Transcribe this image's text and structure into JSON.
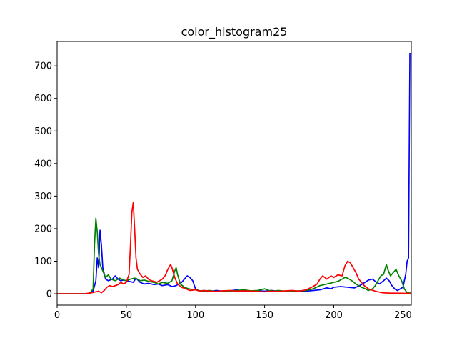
{
  "chart_data": {
    "type": "line",
    "title": "color_histogram25",
    "xlabel": "",
    "ylabel": "",
    "xlim": [
      0,
      256
    ],
    "ylim": [
      -35,
      775
    ],
    "xticks": [
      0,
      50,
      100,
      150,
      200,
      250
    ],
    "yticks": [
      0,
      100,
      200,
      300,
      400,
      500,
      600,
      700
    ],
    "grid": false,
    "series": [
      {
        "color": "#0000ff",
        "points": [
          [
            0,
            0
          ],
          [
            20,
            0
          ],
          [
            24,
            2
          ],
          [
            26,
            8
          ],
          [
            28,
            40
          ],
          [
            29,
            110
          ],
          [
            30,
            80
          ],
          [
            31,
            195
          ],
          [
            32,
            150
          ],
          [
            33,
            80
          ],
          [
            35,
            45
          ],
          [
            37,
            40
          ],
          [
            40,
            45
          ],
          [
            42,
            55
          ],
          [
            44,
            45
          ],
          [
            46,
            40
          ],
          [
            48,
            42
          ],
          [
            50,
            40
          ],
          [
            52,
            38
          ],
          [
            55,
            35
          ],
          [
            57,
            48
          ],
          [
            60,
            35
          ],
          [
            63,
            30
          ],
          [
            66,
            32
          ],
          [
            70,
            28
          ],
          [
            73,
            30
          ],
          [
            76,
            25
          ],
          [
            80,
            28
          ],
          [
            83,
            22
          ],
          [
            86,
            25
          ],
          [
            88,
            30
          ],
          [
            90,
            35
          ],
          [
            92,
            45
          ],
          [
            94,
            55
          ],
          [
            96,
            50
          ],
          [
            98,
            40
          ],
          [
            100,
            15
          ],
          [
            103,
            8
          ],
          [
            106,
            10
          ],
          [
            110,
            7
          ],
          [
            115,
            10
          ],
          [
            120,
            8
          ],
          [
            125,
            9
          ],
          [
            130,
            12
          ],
          [
            135,
            8
          ],
          [
            140,
            7
          ],
          [
            145,
            9
          ],
          [
            150,
            8
          ],
          [
            155,
            10
          ],
          [
            160,
            8
          ],
          [
            165,
            7
          ],
          [
            170,
            9
          ],
          [
            175,
            8
          ],
          [
            180,
            8
          ],
          [
            185,
            10
          ],
          [
            190,
            12
          ],
          [
            195,
            18
          ],
          [
            198,
            15
          ],
          [
            200,
            20
          ],
          [
            205,
            22
          ],
          [
            210,
            20
          ],
          [
            215,
            18
          ],
          [
            220,
            28
          ],
          [
            225,
            42
          ],
          [
            228,
            45
          ],
          [
            230,
            38
          ],
          [
            233,
            30
          ],
          [
            236,
            40
          ],
          [
            238,
            48
          ],
          [
            240,
            40
          ],
          [
            242,
            25
          ],
          [
            244,
            15
          ],
          [
            246,
            10
          ],
          [
            248,
            15
          ],
          [
            250,
            20
          ],
          [
            252,
            60
          ],
          [
            253,
            100
          ],
          [
            254,
            110
          ],
          [
            255,
            740
          ]
        ]
      },
      {
        "color": "#008000",
        "points": [
          [
            0,
            0
          ],
          [
            22,
            0
          ],
          [
            24,
            3
          ],
          [
            26,
            15
          ],
          [
            27,
            150
          ],
          [
            28,
            232
          ],
          [
            29,
            190
          ],
          [
            30,
            120
          ],
          [
            31,
            90
          ],
          [
            33,
            70
          ],
          [
            35,
            50
          ],
          [
            37,
            58
          ],
          [
            39,
            45
          ],
          [
            42,
            40
          ],
          [
            45,
            48
          ],
          [
            48,
            42
          ],
          [
            50,
            40
          ],
          [
            53,
            45
          ],
          [
            56,
            48
          ],
          [
            58,
            45
          ],
          [
            60,
            40
          ],
          [
            63,
            42
          ],
          [
            66,
            38
          ],
          [
            70,
            35
          ],
          [
            73,
            30
          ],
          [
            76,
            35
          ],
          [
            80,
            32
          ],
          [
            83,
            40
          ],
          [
            85,
            70
          ],
          [
            86,
            80
          ],
          [
            87,
            60
          ],
          [
            89,
            30
          ],
          [
            92,
            20
          ],
          [
            95,
            15
          ],
          [
            100,
            12
          ],
          [
            105,
            8
          ],
          [
            110,
            10
          ],
          [
            115,
            7
          ],
          [
            120,
            9
          ],
          [
            125,
            8
          ],
          [
            130,
            10
          ],
          [
            135,
            12
          ],
          [
            140,
            9
          ],
          [
            145,
            10
          ],
          [
            150,
            15
          ],
          [
            153,
            10
          ],
          [
            156,
            8
          ],
          [
            160,
            10
          ],
          [
            165,
            8
          ],
          [
            170,
            7
          ],
          [
            175,
            9
          ],
          [
            180,
            10
          ],
          [
            185,
            15
          ],
          [
            190,
            25
          ],
          [
            195,
            30
          ],
          [
            200,
            35
          ],
          [
            203,
            38
          ],
          [
            206,
            45
          ],
          [
            208,
            50
          ],
          [
            210,
            48
          ],
          [
            213,
            40
          ],
          [
            216,
            30
          ],
          [
            220,
            20
          ],
          [
            223,
            15
          ],
          [
            225,
            10
          ],
          [
            228,
            15
          ],
          [
            230,
            25
          ],
          [
            232,
            40
          ],
          [
            234,
            55
          ],
          [
            236,
            60
          ],
          [
            238,
            90
          ],
          [
            239,
            75
          ],
          [
            241,
            55
          ],
          [
            243,
            65
          ],
          [
            245,
            75
          ],
          [
            247,
            55
          ],
          [
            249,
            40
          ],
          [
            251,
            15
          ],
          [
            253,
            3
          ],
          [
            256,
            2
          ]
        ]
      },
      {
        "color": "#ff0000",
        "points": [
          [
            0,
            0
          ],
          [
            20,
            0
          ],
          [
            25,
            3
          ],
          [
            28,
            6
          ],
          [
            30,
            8
          ],
          [
            32,
            3
          ],
          [
            34,
            10
          ],
          [
            36,
            20
          ],
          [
            38,
            25
          ],
          [
            40,
            22
          ],
          [
            42,
            25
          ],
          [
            44,
            28
          ],
          [
            46,
            35
          ],
          [
            48,
            30
          ],
          [
            50,
            35
          ],
          [
            52,
            60
          ],
          [
            53,
            150
          ],
          [
            54,
            250
          ],
          [
            55,
            280
          ],
          [
            56,
            200
          ],
          [
            57,
            110
          ],
          [
            58,
            75
          ],
          [
            60,
            60
          ],
          [
            62,
            50
          ],
          [
            64,
            55
          ],
          [
            66,
            45
          ],
          [
            68,
            40
          ],
          [
            70,
            38
          ],
          [
            72,
            35
          ],
          [
            74,
            40
          ],
          [
            76,
            45
          ],
          [
            78,
            55
          ],
          [
            80,
            75
          ],
          [
            82,
            90
          ],
          [
            83,
            80
          ],
          [
            85,
            50
          ],
          [
            87,
            30
          ],
          [
            90,
            20
          ],
          [
            93,
            15
          ],
          [
            96,
            10
          ],
          [
            100,
            12
          ],
          [
            103,
            8
          ],
          [
            106,
            10
          ],
          [
            110,
            8
          ],
          [
            115,
            7
          ],
          [
            120,
            9
          ],
          [
            125,
            10
          ],
          [
            130,
            8
          ],
          [
            135,
            9
          ],
          [
            140,
            8
          ],
          [
            145,
            7
          ],
          [
            150,
            6
          ],
          [
            155,
            8
          ],
          [
            160,
            7
          ],
          [
            165,
            9
          ],
          [
            170,
            10
          ],
          [
            175,
            8
          ],
          [
            180,
            12
          ],
          [
            185,
            22
          ],
          [
            188,
            30
          ],
          [
            190,
            45
          ],
          [
            192,
            55
          ],
          [
            195,
            45
          ],
          [
            198,
            55
          ],
          [
            200,
            50
          ],
          [
            203,
            58
          ],
          [
            206,
            55
          ],
          [
            208,
            85
          ],
          [
            210,
            100
          ],
          [
            212,
            95
          ],
          [
            214,
            80
          ],
          [
            216,
            65
          ],
          [
            218,
            45
          ],
          [
            220,
            35
          ],
          [
            222,
            25
          ],
          [
            225,
            15
          ],
          [
            230,
            8
          ],
          [
            235,
            3
          ],
          [
            240,
            2
          ],
          [
            256,
            1
          ]
        ]
      }
    ]
  }
}
